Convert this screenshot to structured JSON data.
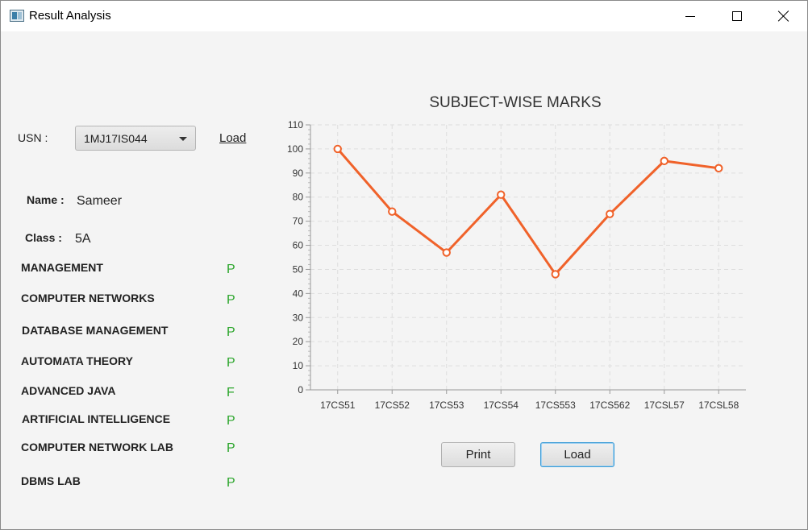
{
  "window": {
    "title": "Result Analysis"
  },
  "form": {
    "usn_label": "USN :",
    "usn_value": "1MJ17IS044",
    "load_link": "Load",
    "name_label": "Name :",
    "name_value": "Sameer",
    "class_label": "Class :",
    "class_value": "5A"
  },
  "subjects": [
    {
      "name": "MANAGEMENT",
      "grade": "P"
    },
    {
      "name": "COMPUTER NETWORKS",
      "grade": "P"
    },
    {
      "name": "DATABASE MANAGEMENT",
      "grade": "P"
    },
    {
      "name": "AUTOMATA THEORY",
      "grade": "P"
    },
    {
      "name": "ADVANCED JAVA",
      "grade": "F"
    },
    {
      "name": "ARTIFICIAL INTELLIGENCE",
      "grade": "P"
    },
    {
      "name": "COMPUTER NETWORK LAB",
      "grade": "P"
    },
    {
      "name": "DBMS LAB",
      "grade": "P"
    }
  ],
  "buttons": {
    "print": "Print",
    "load": "Load"
  },
  "colors": {
    "series": "#f0622a",
    "pass": "#2aa52a",
    "grid": "#dddddd"
  },
  "chart_data": {
    "type": "line",
    "title": "SUBJECT-WISE MARKS",
    "xlabel": "",
    "ylabel": "",
    "categories": [
      "17CS51",
      "17CS52",
      "17CS53",
      "17CS54",
      "17CS553",
      "17CS562",
      "17CSL57",
      "17CSL58"
    ],
    "series": [
      {
        "values": [
          100,
          74,
          57,
          81,
          48,
          73,
          95,
          92
        ]
      }
    ],
    "ylim": [
      0,
      110
    ],
    "yticks": [
      0,
      10,
      20,
      30,
      40,
      50,
      60,
      70,
      80,
      90,
      100,
      110
    ],
    "grid": true,
    "legend": "none"
  }
}
